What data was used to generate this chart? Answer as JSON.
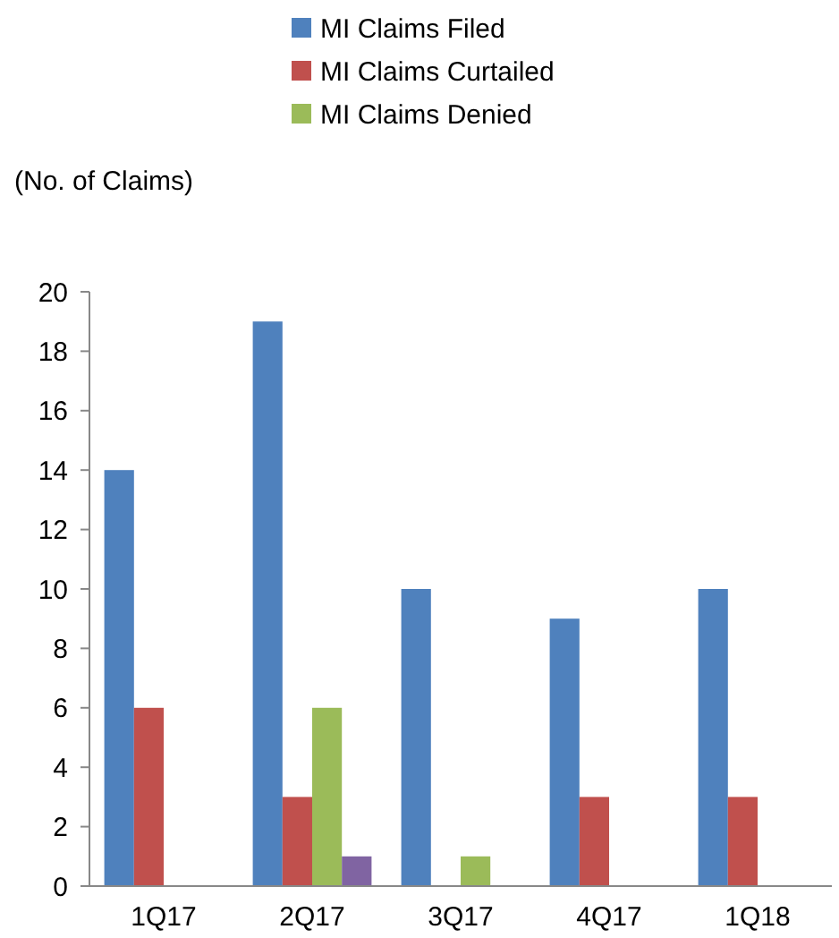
{
  "chart_data": {
    "type": "bar",
    "ylabel": "(No. of Claims)",
    "categories": [
      "1Q17",
      "2Q17",
      "3Q17",
      "4Q17",
      "1Q18"
    ],
    "series": [
      {
        "name": "MI Claims Filed",
        "color": "#4f81bd",
        "values": [
          14,
          19,
          10,
          9,
          10
        ]
      },
      {
        "name": "MI Claims Curtailed",
        "color": "#c0504d",
        "values": [
          6,
          3,
          0,
          3,
          3
        ]
      },
      {
        "name": "MI Claims Denied",
        "color": "#9bbb59",
        "values": [
          0,
          6,
          1,
          0,
          0
        ]
      },
      {
        "color": "#8064a2",
        "values": [
          null,
          1,
          null,
          null,
          null
        ]
      }
    ],
    "ylim": [
      0,
      20
    ],
    "yticks": [
      0,
      2,
      4,
      6,
      8,
      10,
      12,
      14,
      16,
      18,
      20
    ],
    "grid": false,
    "legend": "top"
  }
}
